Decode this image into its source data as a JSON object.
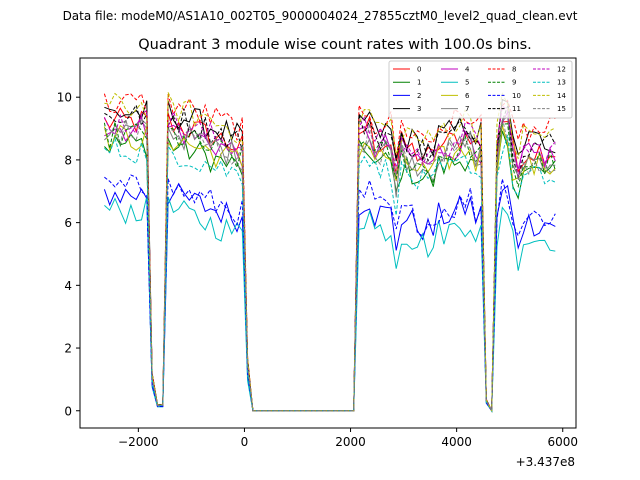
{
  "suptitle": "Data file: modeM0/AS1A10_002T05_9000004024_27855cztM0_level2_quad_clean.evt",
  "chart_data": {
    "type": "line",
    "title": "Quadrant 3 module wise count rates with 100.0s bins.",
    "xlabel": "",
    "ylabel": "",
    "x_offset_label": "+3.437e8",
    "xlim": [
      -3100,
      6250
    ],
    "ylim": [
      -0.55,
      11.25
    ],
    "xticks": [
      -2000,
      0,
      2000,
      4000,
      6000
    ],
    "xtick_labels": [
      "−2000",
      "0",
      "2000",
      "4000",
      "6000"
    ],
    "yticks": [
      0,
      2,
      4,
      6,
      8,
      10
    ],
    "ytick_labels": [
      "0",
      "2",
      "4",
      "6",
      "8",
      "10"
    ],
    "legend_position": "top-right",
    "series": [
      {
        "name": "0",
        "color": "#ff0000",
        "dash": "solid"
      },
      {
        "name": "1",
        "color": "#008000",
        "dash": "solid"
      },
      {
        "name": "2",
        "color": "#0000ff",
        "dash": "solid"
      },
      {
        "name": "3",
        "color": "#000000",
        "dash": "solid"
      },
      {
        "name": "4",
        "color": "#bf00bf",
        "dash": "solid"
      },
      {
        "name": "5",
        "color": "#00bfbf",
        "dash": "solid"
      },
      {
        "name": "6",
        "color": "#bfbf00",
        "dash": "solid"
      },
      {
        "name": "7",
        "color": "#808080",
        "dash": "solid"
      },
      {
        "name": "8",
        "color": "#ff0000",
        "dash": "dashed"
      },
      {
        "name": "9",
        "color": "#008000",
        "dash": "dashed"
      },
      {
        "name": "10",
        "color": "#0000ff",
        "dash": "dashed"
      },
      {
        "name": "11",
        "color": "#000000",
        "dash": "dashed"
      },
      {
        "name": "12",
        "color": "#bf00bf",
        "dash": "dashed"
      },
      {
        "name": "13",
        "color": "#00bfbf",
        "dash": "dashed"
      },
      {
        "name": "14",
        "color": "#bfbf00",
        "dash": "dashed"
      },
      {
        "name": "15",
        "color": "#808080",
        "dash": "dashed"
      }
    ],
    "series_base_levels": [
      8.3,
      7.6,
      6.0,
      8.6,
      8.1,
      5.5,
      7.8,
      8.0,
      8.9,
      7.9,
      6.2,
      8.5,
      8.3,
      7.4,
      8.8,
      8.0
    ],
    "x_start": -2640,
    "x_step": 100,
    "segments": [
      {
        "from": -2640,
        "to": -1640,
        "profile": "active"
      },
      {
        "from": -1540,
        "to": 60,
        "profile": "active"
      },
      {
        "from": 160,
        "to": 2060,
        "profile": "zero"
      },
      {
        "from": 2160,
        "to": 4560,
        "profile": "active"
      },
      {
        "from": 4660,
        "to": 5860,
        "profile": "active"
      }
    ]
  }
}
